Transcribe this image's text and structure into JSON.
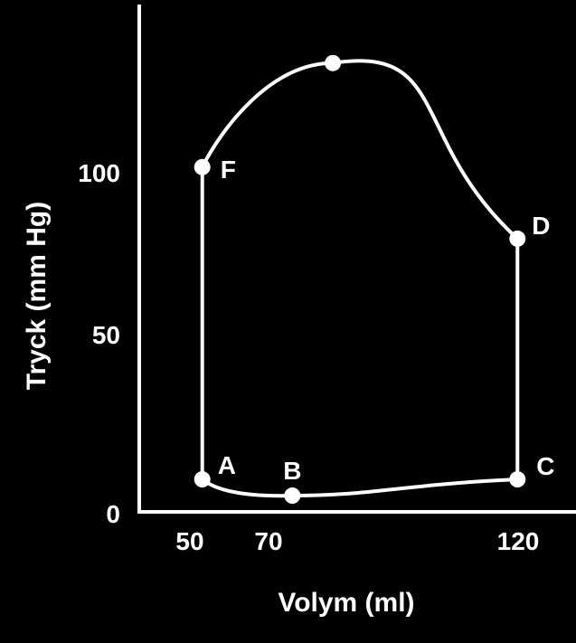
{
  "chart_data": {
    "type": "line",
    "title": "",
    "xlabel": "Volym (ml)",
    "ylabel": "Tryck (mm Hg)",
    "x_ticks": [
      "50",
      "70",
      "120"
    ],
    "y_ticks": [
      "0",
      "50",
      "100"
    ],
    "xlim": [
      36,
      133
    ],
    "ylim": [
      0,
      156
    ],
    "grid": false,
    "legend": "none",
    "colors": {
      "background": "#000000",
      "line": "#ffffff"
    },
    "points": [
      {
        "label": "A",
        "x": 50,
        "y": 10
      },
      {
        "label": "B",
        "x": 70,
        "y": 5
      },
      {
        "label": "C",
        "x": 120,
        "y": 10
      },
      {
        "label": "D",
        "x": 120,
        "y": 84
      },
      {
        "label": "",
        "x": 79,
        "y": 138
      },
      {
        "label": "F",
        "x": 50,
        "y": 106
      }
    ]
  }
}
